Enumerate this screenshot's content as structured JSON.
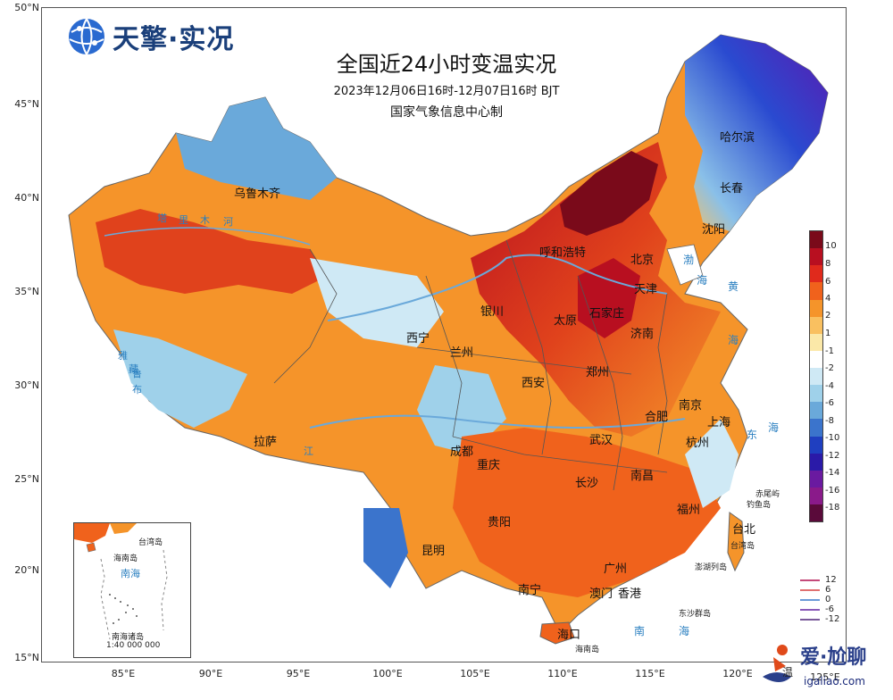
{
  "brand": {
    "name": "天擎·实况"
  },
  "title": {
    "main": "全国近24小时变温实况",
    "period": "2023年12月06日16时-12月07日16时 BJT",
    "issuer": "国家气象信息中心制"
  },
  "axes": {
    "latitudes": [
      "50°N",
      "45°N",
      "40°N",
      "35°N",
      "30°N",
      "25°N",
      "20°N",
      "15°N"
    ],
    "longitudes": [
      "85°E",
      "90°E",
      "95°E",
      "100°E",
      "105°E",
      "110°E",
      "115°E",
      "120°E",
      "125°E"
    ]
  },
  "colorbar": {
    "labels": [
      "10",
      "8",
      "6",
      "4",
      "2",
      "1",
      "-1",
      "-2",
      "-4",
      "-6",
      "-8",
      "-10",
      "-12",
      "-14",
      "-16",
      "-18"
    ],
    "colors": [
      "#7a0a1a",
      "#b80f20",
      "#e02a1c",
      "#f0621c",
      "#f5942a",
      "#f9c060",
      "#fbe8a8",
      "#ffffff",
      "#cfe9f5",
      "#9fd1ea",
      "#6aa9da",
      "#3b74cc",
      "#1f3fc0",
      "#2a1aa8",
      "#6a1aa0",
      "#8a1a8a",
      "#5a0a3a"
    ]
  },
  "iso_legend": {
    "items": [
      {
        "label": "12",
        "color": "#c44a7a"
      },
      {
        "label": "6",
        "color": "#e07070"
      },
      {
        "label": "0",
        "color": "#6a9ad8"
      },
      {
        "label": "-6",
        "color": "#8a5ab8"
      },
      {
        "label": "-12",
        "color": "#7a5a9a"
      }
    ]
  },
  "cities": {
    "harbin": "哈尔滨",
    "changchun": "长春",
    "shenyang": "沈阳",
    "huhehaote": "呼和浩特",
    "beijing": "北京",
    "tianjin": "天津",
    "shijiazhuang": "石家庄",
    "taiyuan": "太原",
    "jinan": "济南",
    "yinchuan": "银川",
    "xining": "西宁",
    "lanzhou": "兰州",
    "xian": "西安",
    "zhengzhou": "郑州",
    "nanjing": "南京",
    "hefei": "合肥",
    "shanghai": "上海",
    "hangzhou": "杭州",
    "wuhan": "武汉",
    "chengdu": "成都",
    "chongqing": "重庆",
    "changsha": "长沙",
    "nanchang": "南昌",
    "fuzhou": "福州",
    "taibei": "台北",
    "guiyang": "贵阳",
    "kunming": "昆明",
    "lasa": "拉萨",
    "nanning": "南宁",
    "guangzhou": "广州",
    "xianggang": "香港",
    "aomen": "澳门",
    "haikou": "海口",
    "wulumuqi": "乌鲁木齐"
  },
  "seas": {
    "bohai": "渤",
    "bohai2": "海",
    "huang": "黄",
    "huang2": "海",
    "dong": "东",
    "dong2": "海",
    "nan": "南",
    "nan2": "海"
  },
  "rivers": {
    "tarim1": "塔",
    "tarim2": "里",
    "tarim3": "木",
    "tarim4": "河",
    "yarlung1": "雅",
    "yarlung2": "鲁",
    "yarlung3": "藏",
    "yarlung4": "布",
    "yarlung5": "江"
  },
  "islands": {
    "chiweiyu": "赤尾屿",
    "diaoyudao": "钓鱼岛",
    "taiwandao": "台湾岛",
    "penghu": "澎湖列岛",
    "dongsha": "东沙群岛",
    "hainandao": "海南岛"
  },
  "inset": {
    "taiwan": "台湾岛",
    "hainan": "海南岛",
    "sea": "南海",
    "islands": "南海诸岛",
    "scale": "1:40 000 000"
  },
  "watermark": {
    "text": "爱·尬聊",
    "url": "igaliao.com",
    "tail1": "温",
    "tail2": "125°E"
  }
}
